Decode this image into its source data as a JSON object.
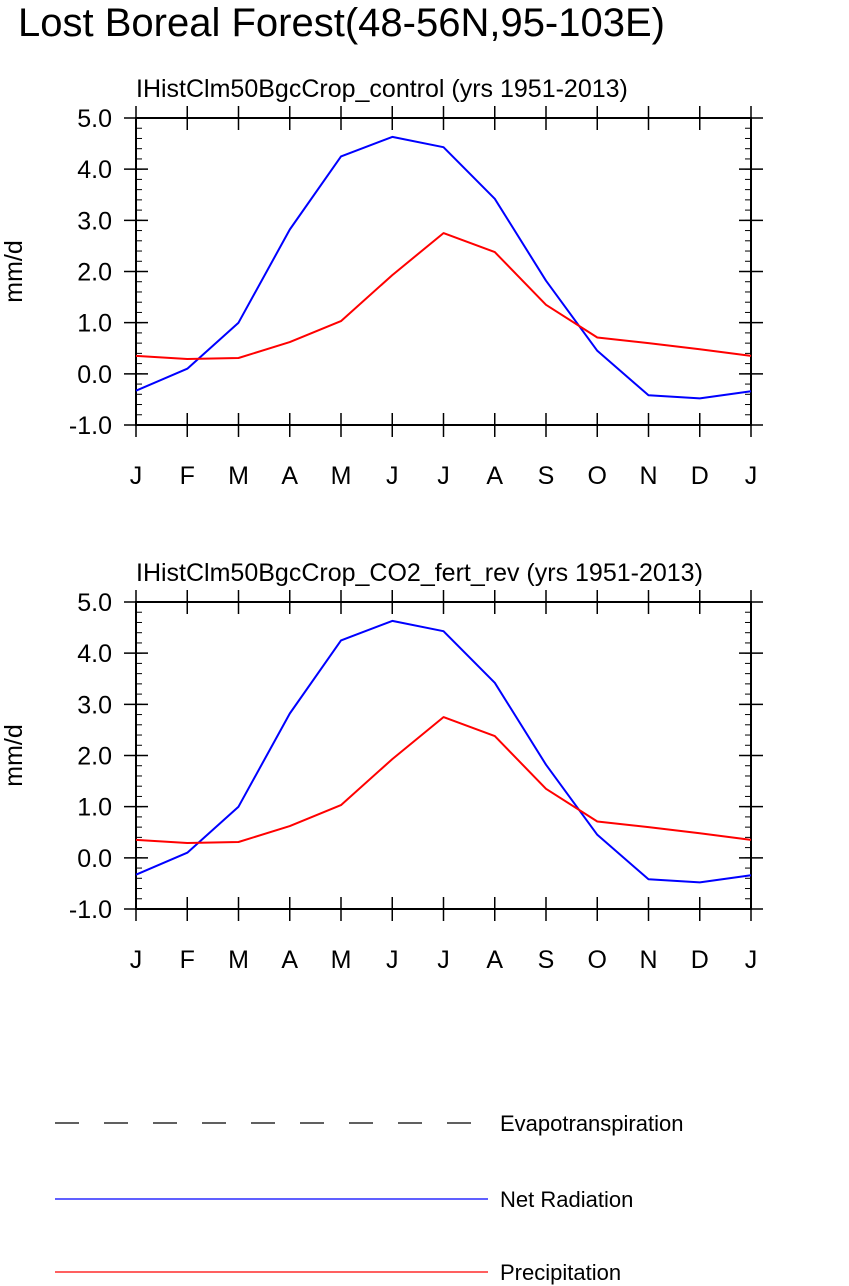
{
  "figure": {
    "title": "Lost Boreal Forest(48-56N,95-103E)"
  },
  "chart_data": [
    {
      "type": "line",
      "title": "IHistClm50BgcCrop_control (yrs 1951-2013)",
      "xlabel": "",
      "ylabel": "mm/d",
      "categories": [
        "J",
        "F",
        "M",
        "A",
        "M",
        "J",
        "J",
        "A",
        "S",
        "O",
        "N",
        "D",
        "J"
      ],
      "y_tick_labels": [
        "-1.0",
        "0.0",
        "1.0",
        "2.0",
        "3.0",
        "4.0",
        "5.0"
      ],
      "ylim": [
        -1.0,
        5.0
      ],
      "grid": false,
      "series": [
        {
          "name": "Net Radiation",
          "color": "#0000ff",
          "values": [
            -0.33,
            0.1,
            1.0,
            2.82,
            4.25,
            4.63,
            4.43,
            3.42,
            1.82,
            0.45,
            -0.42,
            -0.48,
            -0.34
          ]
        },
        {
          "name": "Precipitation",
          "color": "#ff0000",
          "values": [
            0.35,
            0.29,
            0.31,
            0.62,
            1.03,
            1.93,
            2.75,
            2.38,
            1.35,
            0.71,
            0.6,
            0.48,
            0.35
          ]
        }
      ]
    },
    {
      "type": "line",
      "title": "IHistClm50BgcCrop_CO2_fert_rev (yrs 1951-2013)",
      "xlabel": "",
      "ylabel": "mm/d",
      "categories": [
        "J",
        "F",
        "M",
        "A",
        "M",
        "J",
        "J",
        "A",
        "S",
        "O",
        "N",
        "D",
        "J"
      ],
      "y_tick_labels": [
        "-1.0",
        "0.0",
        "1.0",
        "2.0",
        "3.0",
        "4.0",
        "5.0"
      ],
      "ylim": [
        -1.0,
        5.0
      ],
      "grid": false,
      "series": [
        {
          "name": "Net Radiation",
          "color": "#0000ff",
          "values": [
            -0.33,
            0.1,
            1.0,
            2.82,
            4.25,
            4.63,
            4.43,
            3.42,
            1.82,
            0.45,
            -0.42,
            -0.48,
            -0.34
          ]
        },
        {
          "name": "Precipitation",
          "color": "#ff0000",
          "values": [
            0.35,
            0.29,
            0.31,
            0.62,
            1.03,
            1.93,
            2.75,
            2.38,
            1.35,
            0.71,
            0.6,
            0.48,
            0.35
          ]
        }
      ]
    }
  ],
  "legend": {
    "placement": "bottom",
    "items": [
      {
        "label": "Evapotranspiration",
        "color": "#000000",
        "style": "dashed"
      },
      {
        "label": "Net Radiation",
        "color": "#0000ff",
        "style": "solid"
      },
      {
        "label": "Precipitation",
        "color": "#ff0000",
        "style": "solid"
      }
    ]
  }
}
